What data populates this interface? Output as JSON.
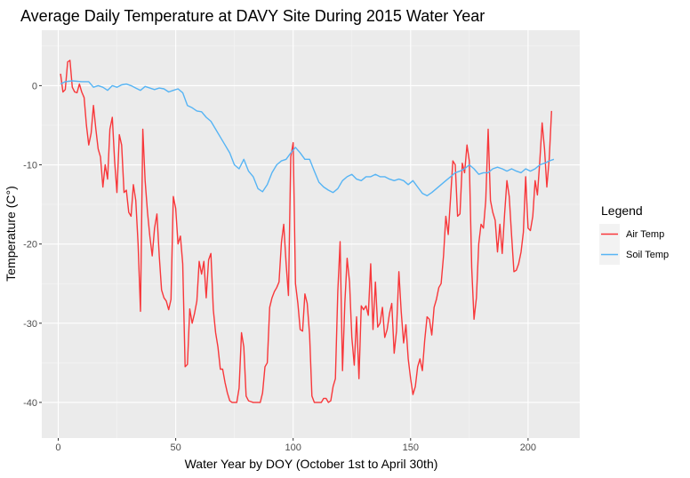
{
  "chart_data": {
    "type": "line",
    "title": "Average Daily Temperature at DAVY Site During 2015 Water Year",
    "xlabel": "Water Year by DOY (October 1st to April 30th)",
    "ylabel": "Temperature (C°)",
    "xlim": [
      -7,
      222
    ],
    "ylim": [
      -44.5,
      7
    ],
    "xticks": [
      0,
      50,
      100,
      150,
      200
    ],
    "yticks": [
      0,
      -10,
      -20,
      -30,
      -40
    ],
    "grid": true,
    "background": "#ebebeb",
    "legend": {
      "title": "Legend",
      "position": "right"
    },
    "series": [
      {
        "name": "Air Temp",
        "color": "#f8373a",
        "points": [
          [
            1,
            1.5
          ],
          [
            2,
            -0.8
          ],
          [
            3,
            -0.5
          ],
          [
            4,
            3.0
          ],
          [
            5,
            3.2
          ],
          [
            6,
            -0.2
          ],
          [
            7,
            -0.8
          ],
          [
            8,
            -0.9
          ],
          [
            9,
            0.2
          ],
          [
            10,
            -0.8
          ],
          [
            11,
            -1.5
          ],
          [
            12,
            -5
          ],
          [
            13,
            -7.5
          ],
          [
            14,
            -6
          ],
          [
            15,
            -2.5
          ],
          [
            16,
            -5.5
          ],
          [
            17,
            -8
          ],
          [
            18,
            -9
          ],
          [
            19,
            -12.8
          ],
          [
            20,
            -10
          ],
          [
            21,
            -11.8
          ],
          [
            22,
            -5.5
          ],
          [
            23,
            -4
          ],
          [
            24,
            -9.5
          ],
          [
            25,
            -13.5
          ],
          [
            26,
            -6.2
          ],
          [
            27,
            -7.5
          ],
          [
            28,
            -13.5
          ],
          [
            29,
            -13.2
          ],
          [
            30,
            -16
          ],
          [
            31,
            -16.5
          ],
          [
            32,
            -12.5
          ],
          [
            33,
            -14.5
          ],
          [
            34,
            -20
          ],
          [
            35,
            -28.5
          ],
          [
            36,
            -5.5
          ],
          [
            37,
            -12
          ],
          [
            38,
            -16
          ],
          [
            39,
            -19
          ],
          [
            40,
            -21.5
          ],
          [
            41,
            -18
          ],
          [
            42,
            -16.2
          ],
          [
            43,
            -21.5
          ],
          [
            44,
            -25.8
          ],
          [
            45,
            -26.8
          ],
          [
            46,
            -27.2
          ],
          [
            47,
            -28.3
          ],
          [
            48,
            -27
          ],
          [
            49,
            -14
          ],
          [
            50,
            -15.5
          ],
          [
            51,
            -20
          ],
          [
            52,
            -19
          ],
          [
            53,
            -22.5
          ],
          [
            54,
            -35.5
          ],
          [
            55,
            -35.2
          ],
          [
            56,
            -28.2
          ],
          [
            57,
            -30
          ],
          [
            58,
            -28.8
          ],
          [
            59,
            -27.2
          ],
          [
            60,
            -22.2
          ],
          [
            61,
            -23.8
          ],
          [
            62,
            -22.2
          ],
          [
            63,
            -26.8
          ],
          [
            64,
            -22
          ],
          [
            65,
            -21.2
          ],
          [
            66,
            -28.3
          ],
          [
            67,
            -31.2
          ],
          [
            68,
            -33
          ],
          [
            69,
            -35.8
          ],
          [
            70,
            -35.8
          ],
          [
            71,
            -37.5
          ],
          [
            72,
            -38.8
          ],
          [
            73,
            -39.8
          ],
          [
            74,
            -40
          ],
          [
            75,
            -40
          ],
          [
            76,
            -40
          ],
          [
            77,
            -38.2
          ],
          [
            78,
            -31.2
          ],
          [
            79,
            -33
          ],
          [
            80,
            -39.2
          ],
          [
            81,
            -39.8
          ],
          [
            82,
            -39.9
          ],
          [
            83,
            -40
          ],
          [
            84,
            -40
          ],
          [
            85,
            -40
          ],
          [
            86,
            -40
          ],
          [
            87,
            -38.8
          ],
          [
            88,
            -35.5
          ],
          [
            89,
            -35
          ],
          [
            90,
            -28
          ],
          [
            91,
            -26.8
          ],
          [
            92,
            -26
          ],
          [
            93,
            -25.5
          ],
          [
            94,
            -24.8
          ],
          [
            95,
            -19.8
          ],
          [
            96,
            -17.5
          ],
          [
            97,
            -22.5
          ],
          [
            98,
            -26.5
          ],
          [
            99,
            -9
          ],
          [
            100,
            -7.2
          ],
          [
            101,
            -25
          ],
          [
            102,
            -27.5
          ],
          [
            103,
            -30.8
          ],
          [
            104,
            -31
          ],
          [
            105,
            -26.3
          ],
          [
            106,
            -27.5
          ],
          [
            107,
            -31.5
          ],
          [
            108,
            -39.2
          ],
          [
            109,
            -40
          ],
          [
            110,
            -40
          ],
          [
            111,
            -40
          ],
          [
            112,
            -40
          ],
          [
            113,
            -39.5
          ],
          [
            114,
            -39.5
          ],
          [
            115,
            -40
          ],
          [
            116,
            -39.8
          ],
          [
            117,
            -38
          ],
          [
            118,
            -37
          ],
          [
            119,
            -26
          ],
          [
            120,
            -19.7
          ],
          [
            121,
            -36
          ],
          [
            122,
            -27.5
          ],
          [
            123,
            -21.8
          ],
          [
            124,
            -24.8
          ],
          [
            125,
            -31.8
          ],
          [
            126,
            -35.3
          ],
          [
            127,
            -29.2
          ],
          [
            128,
            -37
          ],
          [
            129,
            -27.8
          ],
          [
            130,
            -28.3
          ],
          [
            131,
            -27.8
          ],
          [
            132,
            -29
          ],
          [
            133,
            -22.5
          ],
          [
            134,
            -30.8
          ],
          [
            135,
            -24.8
          ],
          [
            136,
            -30.5
          ],
          [
            137,
            -30
          ],
          [
            138,
            -28
          ],
          [
            139,
            -31.8
          ],
          [
            140,
            -30.8
          ],
          [
            141,
            -28.8
          ],
          [
            142,
            -27.5
          ],
          [
            143,
            -33.8
          ],
          [
            144,
            -31
          ],
          [
            145,
            -23.5
          ],
          [
            146,
            -28.5
          ],
          [
            147,
            -32.5
          ],
          [
            148,
            -30.2
          ],
          [
            149,
            -34.5
          ],
          [
            150,
            -37
          ],
          [
            151,
            -39
          ],
          [
            152,
            -38
          ],
          [
            153,
            -35.5
          ],
          [
            154,
            -34.5
          ],
          [
            155,
            -36
          ],
          [
            156,
            -32.2
          ],
          [
            157,
            -29.2
          ],
          [
            158,
            -29.5
          ],
          [
            159,
            -31.5
          ],
          [
            160,
            -28
          ],
          [
            161,
            -27
          ],
          [
            162,
            -25.5
          ],
          [
            163,
            -25
          ],
          [
            164,
            -21.5
          ],
          [
            165,
            -16.5
          ],
          [
            166,
            -18.8
          ],
          [
            167,
            -14.2
          ],
          [
            168,
            -9.5
          ],
          [
            169,
            -10
          ],
          [
            170,
            -16.5
          ],
          [
            171,
            -16.2
          ],
          [
            172,
            -9.8
          ],
          [
            173,
            -11
          ],
          [
            174,
            -7.5
          ],
          [
            175,
            -9.5
          ],
          [
            176,
            -23
          ],
          [
            177,
            -29.5
          ],
          [
            178,
            -26.8
          ],
          [
            179,
            -20
          ],
          [
            180,
            -17.5
          ],
          [
            181,
            -18
          ],
          [
            182,
            -14.5
          ],
          [
            183,
            -5.5
          ],
          [
            184,
            -14.5
          ],
          [
            185,
            -16
          ],
          [
            186,
            -17
          ],
          [
            187,
            -21
          ],
          [
            188,
            -17.5
          ],
          [
            189,
            -21.2
          ],
          [
            190,
            -16.2
          ],
          [
            191,
            -12
          ],
          [
            192,
            -14
          ],
          [
            193,
            -19
          ],
          [
            194,
            -23.5
          ],
          [
            195,
            -23.3
          ],
          [
            196,
            -22.5
          ],
          [
            197,
            -21
          ],
          [
            198,
            -18.5
          ],
          [
            199,
            -11.5
          ],
          [
            200,
            -18
          ],
          [
            201,
            -18.3
          ],
          [
            202,
            -16.5
          ],
          [
            203,
            -12
          ],
          [
            204,
            -13.8
          ],
          [
            205,
            -9.5
          ],
          [
            206,
            -4.7
          ],
          [
            207,
            -8
          ],
          [
            208,
            -12.8
          ],
          [
            209,
            -9.2
          ],
          [
            210,
            -3.2
          ]
        ]
      },
      {
        "name": "Soil Temp",
        "color": "#56b4f4",
        "points": [
          [
            1,
            0.2
          ],
          [
            3,
            0.5
          ],
          [
            6,
            0.6
          ],
          [
            10,
            0.5
          ],
          [
            13,
            0.5
          ],
          [
            15,
            -0.2
          ],
          [
            17,
            0
          ],
          [
            19,
            -0.2
          ],
          [
            21,
            -0.6
          ],
          [
            23,
            0
          ],
          [
            25,
            -0.2
          ],
          [
            27,
            0.1
          ],
          [
            29,
            0.2
          ],
          [
            31,
            0
          ],
          [
            33,
            -0.3
          ],
          [
            35,
            -0.6
          ],
          [
            37,
            -0.1
          ],
          [
            39,
            -0.3
          ],
          [
            41,
            -0.5
          ],
          [
            43,
            -0.3
          ],
          [
            45,
            -0.4
          ],
          [
            47,
            -0.8
          ],
          [
            49,
            -0.6
          ],
          [
            51,
            -0.4
          ],
          [
            53,
            -0.9
          ],
          [
            55,
            -2.5
          ],
          [
            57,
            -2.8
          ],
          [
            59,
            -3.2
          ],
          [
            61,
            -3.3
          ],
          [
            63,
            -4
          ],
          [
            65,
            -4.5
          ],
          [
            67,
            -5.5
          ],
          [
            69,
            -6.5
          ],
          [
            71,
            -7.5
          ],
          [
            73,
            -8.5
          ],
          [
            75,
            -10
          ],
          [
            77,
            -10.5
          ],
          [
            79,
            -9.3
          ],
          [
            81,
            -10.8
          ],
          [
            83,
            -11.5
          ],
          [
            85,
            -13
          ],
          [
            87,
            -13.4
          ],
          [
            89,
            -12.5
          ],
          [
            91,
            -11
          ],
          [
            93,
            -10
          ],
          [
            95,
            -9.5
          ],
          [
            97,
            -9.3
          ],
          [
            99,
            -8.5
          ],
          [
            101,
            -7.8
          ],
          [
            103,
            -8.5
          ],
          [
            105,
            -9.3
          ],
          [
            107,
            -9.3
          ],
          [
            109,
            -10.8
          ],
          [
            111,
            -12.2
          ],
          [
            113,
            -12.8
          ],
          [
            115,
            -13.2
          ],
          [
            117,
            -13.5
          ],
          [
            119,
            -13
          ],
          [
            121,
            -12
          ],
          [
            123,
            -11.5
          ],
          [
            125,
            -11.2
          ],
          [
            127,
            -11.8
          ],
          [
            129,
            -12
          ],
          [
            131,
            -11.5
          ],
          [
            133,
            -11.5
          ],
          [
            135,
            -11.2
          ],
          [
            137,
            -11.5
          ],
          [
            139,
            -11.5
          ],
          [
            141,
            -11.8
          ],
          [
            143,
            -12
          ],
          [
            145,
            -11.8
          ],
          [
            147,
            -12
          ],
          [
            149,
            -12.5
          ],
          [
            151,
            -12
          ],
          [
            153,
            -12.8
          ],
          [
            155,
            -13.6
          ],
          [
            157,
            -13.9
          ],
          [
            159,
            -13.5
          ],
          [
            161,
            -13
          ],
          [
            163,
            -12.5
          ],
          [
            165,
            -12
          ],
          [
            167,
            -11.5
          ],
          [
            169,
            -11
          ],
          [
            171,
            -10.8
          ],
          [
            173,
            -10.5
          ],
          [
            175,
            -10
          ],
          [
            177,
            -10.5
          ],
          [
            179,
            -11.2
          ],
          [
            181,
            -11
          ],
          [
            183,
            -11
          ],
          [
            185,
            -10.5
          ],
          [
            187,
            -10.3
          ],
          [
            189,
            -10.5
          ],
          [
            191,
            -10.8
          ],
          [
            193,
            -10.5
          ],
          [
            195,
            -10.8
          ],
          [
            197,
            -11
          ],
          [
            199,
            -10.5
          ],
          [
            201,
            -10.8
          ],
          [
            203,
            -10.5
          ],
          [
            205,
            -10
          ],
          [
            207,
            -9.8
          ],
          [
            209,
            -9.5
          ],
          [
            211,
            -9.3
          ]
        ]
      }
    ]
  }
}
